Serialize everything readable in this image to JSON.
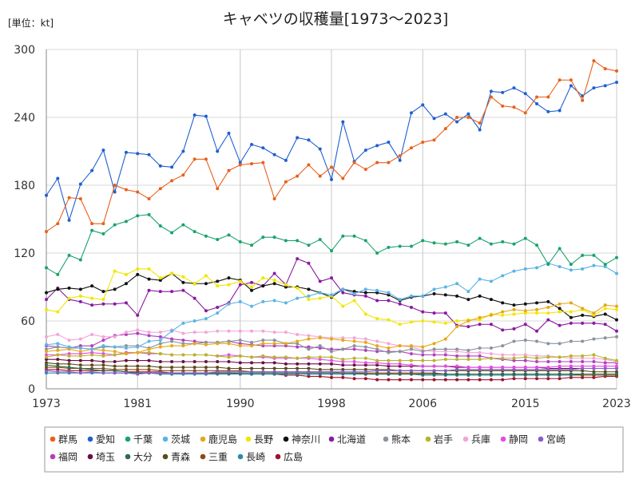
{
  "chart_data": {
    "type": "line",
    "title": "キャベツの収穫量[1973～2023]",
    "unit_label": "[単位：kt]",
    "ylim": [
      0,
      300
    ],
    "xlim": [
      1973,
      2023
    ],
    "y_ticks": [
      "0",
      "60",
      "120",
      "180",
      "240",
      "300"
    ],
    "x_ticks": [
      "1973",
      "1981",
      "1990",
      "1998",
      "2006",
      "2015",
      "2023"
    ],
    "grid": true,
    "legend_position": "bottom",
    "series": [
      {
        "name": "群馬",
        "color": "#e8601c",
        "values": [
          139,
          146,
          169,
          168,
          146,
          146,
          180,
          176,
          174,
          168,
          177,
          184,
          189,
          203,
          203,
          177,
          193,
          198,
          199,
          200,
          168,
          183,
          188,
          198,
          188,
          196,
          186,
          200,
          194,
          200,
          200,
          206,
          213,
          218,
          220,
          230,
          240,
          240,
          235,
          258,
          250,
          249,
          244,
          258,
          258,
          273,
          273,
          255,
          290,
          283,
          281
        ]
      },
      {
        "name": "愛知",
        "color": "#1f5fd0",
        "values": [
          171,
          186,
          149,
          181,
          193,
          211,
          174,
          209,
          208,
          207,
          197,
          196,
          210,
          242,
          241,
          210,
          226,
          200,
          216,
          213,
          207,
          202,
          222,
          220,
          212,
          185,
          236,
          201,
          211,
          215,
          218,
          202,
          244,
          251,
          239,
          243,
          236,
          243,
          229,
          263,
          262,
          266,
          261,
          252,
          245,
          246,
          268,
          259,
          266,
          268,
          271
        ]
      },
      {
        "name": "千葉",
        "color": "#1aa36b",
        "values": [
          107,
          101,
          118,
          114,
          140,
          137,
          145,
          148,
          153,
          154,
          144,
          138,
          145,
          139,
          135,
          132,
          136,
          130,
          127,
          134,
          134,
          131,
          131,
          127,
          132,
          122,
          135,
          135,
          131,
          120,
          125,
          126,
          126,
          131,
          129,
          128,
          130,
          127,
          133,
          128,
          130,
          128,
          133,
          127,
          110,
          124,
          110,
          118,
          118,
          110,
          116
        ]
      },
      {
        "name": "茨城",
        "color": "#5ab4e6",
        "values": [
          39,
          40,
          37,
          36,
          35,
          38,
          37,
          36,
          37,
          42,
          43,
          51,
          58,
          60,
          62,
          67,
          75,
          77,
          73,
          77,
          78,
          76,
          80,
          82,
          85,
          83,
          88,
          84,
          88,
          87,
          85,
          79,
          82,
          82,
          88,
          90,
          93,
          86,
          97,
          95,
          100,
          104,
          106,
          107,
          111,
          108,
          105,
          106,
          109,
          108,
          102
        ]
      },
      {
        "name": "鹿児島",
        "color": "#e6a817",
        "values": [
          33,
          34,
          35,
          33,
          35,
          34,
          33,
          31,
          32,
          35,
          37,
          38,
          38,
          40,
          39,
          40,
          40,
          38,
          38,
          40,
          40,
          40,
          42,
          44,
          45,
          44,
          43,
          42,
          41,
          38,
          36,
          38,
          38,
          37,
          40,
          44,
          55,
          60,
          63,
          65,
          68,
          70,
          69,
          70,
          72,
          75,
          76,
          71,
          67,
          74,
          73
        ]
      },
      {
        "name": "長野",
        "color": "#f2e600",
        "values": [
          70,
          68,
          80,
          82,
          80,
          79,
          104,
          101,
          106,
          106,
          98,
          102,
          99,
          93,
          100,
          91,
          92,
          95,
          90,
          98,
          96,
          92,
          89,
          79,
          80,
          82,
          73,
          78,
          66,
          62,
          61,
          57,
          59,
          60,
          59,
          58,
          60,
          61,
          61,
          66,
          65,
          66,
          67,
          67,
          67,
          68,
          68,
          70,
          65,
          71,
          70
        ]
      },
      {
        "name": "神奈川",
        "color": "#111111",
        "values": [
          85,
          88,
          89,
          88,
          91,
          86,
          88,
          93,
          101,
          97,
          96,
          102,
          94,
          93,
          93,
          95,
          98,
          96,
          87,
          91,
          93,
          90,
          90,
          88,
          85,
          81,
          88,
          86,
          85,
          85,
          83,
          78,
          81,
          82,
          84,
          83,
          82,
          79,
          82,
          79,
          76,
          74,
          75,
          76,
          77,
          71,
          63,
          65,
          64,
          66,
          61
        ]
      },
      {
        "name": "北海道",
        "color": "#8a1aa0",
        "values": [
          79,
          89,
          79,
          77,
          74,
          75,
          75,
          76,
          65,
          87,
          86,
          86,
          87,
          80,
          69,
          72,
          76,
          92,
          94,
          91,
          102,
          92,
          115,
          111,
          95,
          98,
          85,
          83,
          82,
          78,
          78,
          75,
          72,
          68,
          67,
          67,
          56,
          55,
          57,
          57,
          52,
          53,
          57,
          51,
          61,
          56,
          58,
          58,
          58,
          57,
          51
        ]
      },
      {
        "name": "熊本",
        "color": "#8a939b",
        "values": [
          35,
          37,
          36,
          36,
          35,
          37,
          37,
          38,
          38,
          36,
          40,
          42,
          40,
          40,
          41,
          41,
          42,
          43,
          41,
          43,
          43,
          40,
          40,
          35,
          38,
          33,
          35,
          38,
          37,
          35,
          32,
          33,
          35,
          33,
          35,
          35,
          35,
          34,
          36,
          36,
          38,
          42,
          43,
          42,
          40,
          40,
          42,
          42,
          44,
          45,
          46
        ]
      },
      {
        "name": "岩手",
        "color": "#b5b52a",
        "values": [
          28,
          30,
          29,
          29,
          30,
          29,
          30,
          31,
          32,
          32,
          31,
          30,
          30,
          30,
          30,
          29,
          28,
          29,
          28,
          29,
          28,
          28,
          27,
          28,
          28,
          28,
          26,
          27,
          27,
          25,
          25,
          25,
          25,
          25,
          25,
          26,
          26,
          26,
          26,
          27,
          27,
          27,
          28,
          27,
          28,
          28,
          29,
          29,
          30,
          27,
          25
        ]
      },
      {
        "name": "兵庫",
        "color": "#f2a6d8",
        "values": [
          46,
          48,
          43,
          44,
          48,
          46,
          46,
          50,
          52,
          50,
          50,
          52,
          49,
          50,
          50,
          51,
          51,
          51,
          51,
          51,
          50,
          50,
          48,
          47,
          46,
          45,
          45,
          45,
          44,
          42,
          40,
          38,
          37,
          34,
          33,
          33,
          33,
          32,
          32,
          31,
          30,
          30,
          30,
          29,
          29,
          28,
          27,
          27,
          27,
          26,
          24
        ]
      },
      {
        "name": "静岡",
        "color": "#e34be8",
        "values": [
          30,
          30,
          31,
          31,
          32,
          31,
          30,
          32,
          32,
          31,
          31,
          30,
          30,
          30,
          30,
          29,
          30,
          29,
          28,
          28,
          27,
          27,
          27,
          27,
          26,
          25,
          24,
          24,
          23,
          23,
          22,
          22,
          21,
          20,
          20,
          20,
          20,
          19,
          19,
          19,
          19,
          19,
          19,
          19,
          19,
          20,
          20,
          20,
          20,
          20,
          20
        ]
      },
      {
        "name": "宮崎",
        "color": "#8a5bc9",
        "values": [
          16,
          15,
          15,
          14,
          15,
          14,
          14,
          14,
          13,
          14,
          14,
          14,
          14,
          14,
          14,
          15,
          15,
          15,
          15,
          15,
          15,
          15,
          15,
          15,
          15,
          15,
          15,
          15,
          15,
          16,
          16,
          16,
          16,
          16,
          16,
          16,
          17,
          17,
          17,
          17,
          17,
          17,
          17,
          17,
          17,
          17,
          17,
          18,
          18,
          18,
          18
        ]
      },
      {
        "name": "福岡",
        "color": "#b13fbd",
        "values": [
          38,
          37,
          36,
          38,
          38,
          43,
          47,
          48,
          49,
          47,
          46,
          44,
          43,
          42,
          41,
          41,
          42,
          40,
          39,
          38,
          38,
          38,
          37,
          37,
          36,
          35,
          35,
          35,
          34,
          33,
          33,
          33,
          31,
          30,
          30,
          30,
          29,
          29,
          29,
          27,
          26,
          25,
          25,
          24,
          24,
          24,
          24,
          24,
          24,
          23,
          23
        ]
      },
      {
        "name": "埼玉",
        "color": "#6b0f45",
        "values": [
          26,
          26,
          25,
          25,
          25,
          24,
          24,
          25,
          25,
          25,
          24,
          24,
          24,
          24,
          24,
          24,
          24,
          23,
          23,
          23,
          23,
          22,
          22,
          22,
          22,
          22,
          21,
          21,
          21,
          21,
          20,
          20,
          20,
          20,
          20,
          20,
          19,
          19,
          19,
          19,
          19,
          19,
          19,
          19,
          18,
          18,
          18,
          18,
          18,
          18,
          18
        ]
      },
      {
        "name": "大分",
        "color": "#2e6b4a",
        "values": [
          21,
          20,
          19,
          18,
          17,
          16,
          16,
          15,
          14,
          14,
          14,
          14,
          14,
          14,
          14,
          14,
          14,
          14,
          14,
          14,
          14,
          14,
          14,
          14,
          14,
          14,
          14,
          14,
          13,
          13,
          13,
          13,
          13,
          13,
          13,
          13,
          13,
          13,
          13,
          13,
          13,
          13,
          13,
          13,
          13,
          13,
          13,
          13,
          13,
          13,
          13
        ]
      },
      {
        "name": "青森",
        "color": "#5a4a1a",
        "values": [
          23,
          22,
          22,
          21,
          21,
          21,
          20,
          20,
          20,
          20,
          19,
          19,
          19,
          19,
          19,
          19,
          18,
          18,
          18,
          18,
          18,
          18,
          18,
          18,
          17,
          17,
          17,
          17,
          17,
          17,
          17,
          16,
          16,
          16,
          16,
          16,
          16,
          16,
          16,
          16,
          16,
          16,
          16,
          16,
          16,
          16,
          16,
          16,
          15,
          15,
          15
        ]
      },
      {
        "name": "三重",
        "color": "#8b4a16",
        "values": [
          19,
          19,
          18,
          18,
          18,
          18,
          17,
          17,
          17,
          17,
          16,
          16,
          16,
          16,
          16,
          16,
          16,
          16,
          15,
          15,
          15,
          15,
          15,
          15,
          15,
          15,
          14,
          14,
          14,
          14,
          14,
          14,
          14,
          14,
          14,
          13,
          13,
          13,
          13,
          13,
          13,
          13,
          13,
          13,
          13,
          13,
          13,
          12,
          12,
          12,
          12
        ]
      },
      {
        "name": "長崎",
        "color": "#2c8aa8",
        "values": [
          14,
          14,
          14,
          14,
          14,
          14,
          14,
          14,
          14,
          14,
          13,
          13,
          13,
          13,
          13,
          13,
          13,
          13,
          13,
          13,
          13,
          13,
          13,
          13,
          13,
          13,
          13,
          13,
          13,
          13,
          13,
          13,
          13,
          12,
          12,
          12,
          12,
          12,
          12,
          12,
          12,
          12,
          12,
          12,
          12,
          12,
          12,
          12,
          12,
          12,
          12
        ]
      },
      {
        "name": "広島",
        "color": "#a0102e",
        "values": [
          17,
          17,
          16,
          16,
          16,
          16,
          16,
          15,
          15,
          15,
          15,
          14,
          14,
          14,
          14,
          14,
          14,
          13,
          13,
          13,
          13,
          12,
          12,
          11,
          11,
          10,
          10,
          9,
          9,
          8,
          8,
          8,
          8,
          8,
          8,
          8,
          8,
          8,
          8,
          8,
          8,
          9,
          9,
          9,
          9,
          9,
          10,
          10,
          10,
          11,
          11
        ]
      }
    ]
  }
}
